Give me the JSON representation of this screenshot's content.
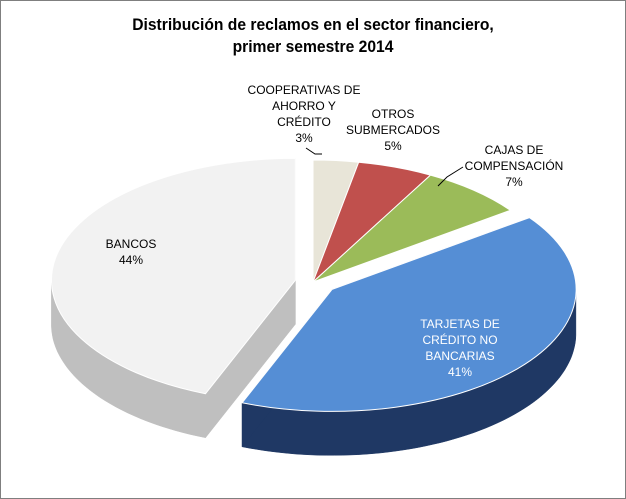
{
  "chart_data": {
    "type": "pie",
    "title": "Distribución de reclamos en el sector financiero,",
    "subtitle": "primer semestre 2014",
    "slices": [
      {
        "label_lines": [
          "COOPERATIVAS DE",
          "AHORRO Y",
          "CRÉDITO"
        ],
        "pct_label": "3%",
        "value": 3,
        "color": "#e8e5d8",
        "side": "#bdb9a8"
      },
      {
        "label_lines": [
          "OTROS",
          "SUBMERCADOS"
        ],
        "pct_label": "5%",
        "value": 5,
        "color": "#c0504d",
        "side": "#8c3533"
      },
      {
        "label_lines": [
          "CAJAS DE",
          "COMPENSACIÓN"
        ],
        "pct_label": "7%",
        "value": 7,
        "color": "#9bbb59",
        "side": "#6e8a3b"
      },
      {
        "label_lines": [
          "TARJETAS DE",
          "CRÉDITO NO",
          "BANCARIAS"
        ],
        "pct_label": "41%",
        "value": 41,
        "color": "#558ed5",
        "side": "#1f3864"
      },
      {
        "label_lines": [
          "BANCOS"
        ],
        "pct_label": "44%",
        "value": 44,
        "color": "#f2f2f2",
        "side": "#bfbfbf"
      }
    ],
    "legend": "none"
  }
}
